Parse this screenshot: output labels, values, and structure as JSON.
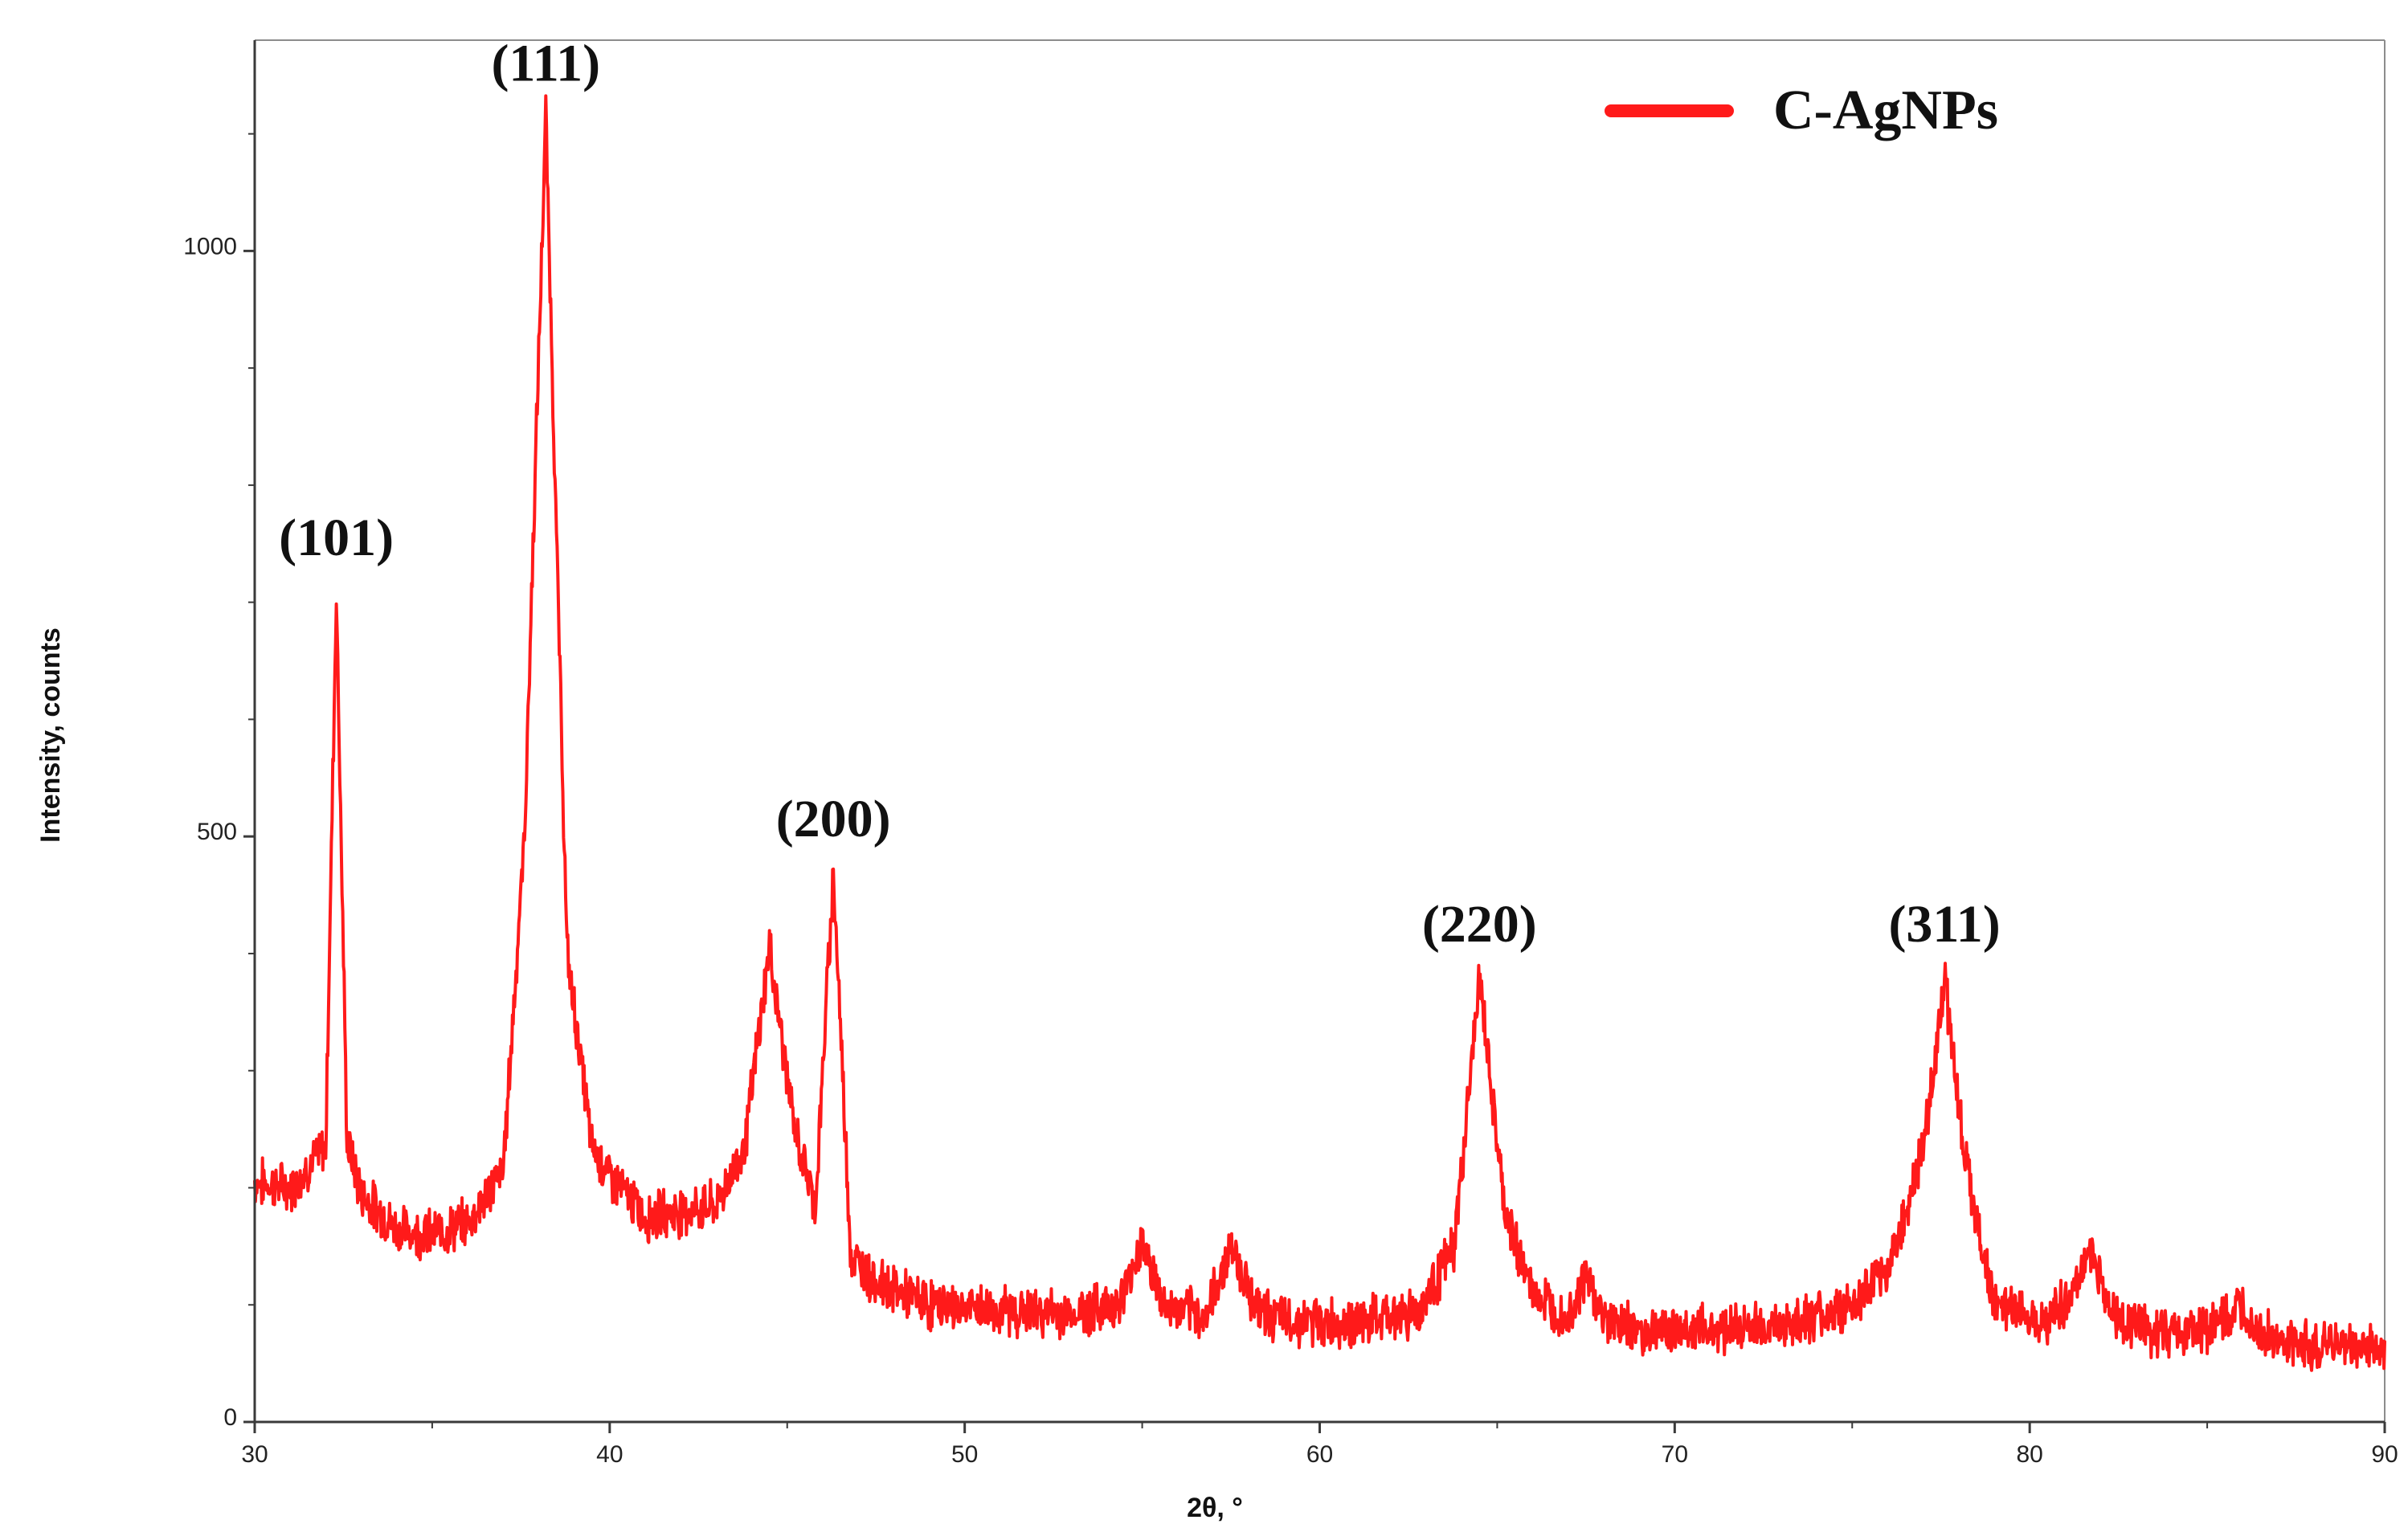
{
  "chart_data": {
    "type": "line",
    "title": "",
    "xlabel": "2θ, °",
    "ylabel": "Intensity, counts",
    "xlim": [
      30,
      90
    ],
    "ylim": [
      0,
      1180
    ],
    "x_ticks": [
      30,
      40,
      50,
      60,
      70,
      80,
      90
    ],
    "x_tick_labels": [
      "30",
      "40",
      "50",
      "60",
      "70",
      "80",
      "90"
    ],
    "y_ticks": [
      0,
      500,
      1000
    ],
    "y_tick_labels": [
      "0",
      "500",
      "1000"
    ],
    "grid": false,
    "legend": {
      "position": "top-right",
      "entries": [
        {
          "label": "C-AgNPs",
          "color": "#ff1a1a"
        }
      ]
    },
    "series": [
      {
        "name": "C-AgNPs",
        "color": "#ff1a1a",
        "x": [
          30,
          31,
          32.0,
          32.3,
          32.6,
          33,
          34,
          35,
          36,
          37,
          37.6,
          38.2,
          38.8,
          39.5,
          40,
          41,
          42,
          43,
          43.8,
          44.5,
          45.2,
          45.8,
          46.3,
          46.8,
          47.5,
          49,
          51,
          53,
          54.4,
          55,
          55.6,
          56.8,
          57.5,
          58.2,
          59,
          61,
          62.8,
          63.8,
          64.5,
          65.2,
          66,
          67,
          67.5,
          68,
          69,
          71,
          73,
          75,
          76,
          77,
          77.6,
          78.2,
          79,
          80.5,
          81.2,
          81.7,
          82.3,
          83.5,
          85,
          86,
          87,
          88.5,
          90
        ],
        "values": [
          205,
          200,
          235,
          710,
          240,
          195,
          165,
          160,
          170,
          215,
          500,
          1115,
          400,
          235,
          210,
          175,
          180,
          185,
          235,
          405,
          250,
          185,
          470,
          140,
          120,
          100,
          95,
          92,
          102,
          155,
          98,
          90,
          152,
          98,
          86,
          84,
          95,
          150,
          380,
          180,
          110,
          90,
          125,
          88,
          78,
          80,
          82,
          98,
          130,
          230,
          380,
          220,
          100,
          88,
          108,
          150,
          92,
          76,
          80,
          95,
          65,
          66,
          62
        ]
      }
    ],
    "annotations": [
      {
        "text": "(101)",
        "x": 32.3,
        "y": 710
      },
      {
        "text": "(111)",
        "x": 38.2,
        "y": 1115
      },
      {
        "text": "(200)",
        "x": 46.3,
        "y": 470
      },
      {
        "text": "(220)",
        "x": 64.5,
        "y": 380
      },
      {
        "text": "(311)",
        "x": 77.6,
        "y": 380
      }
    ]
  }
}
